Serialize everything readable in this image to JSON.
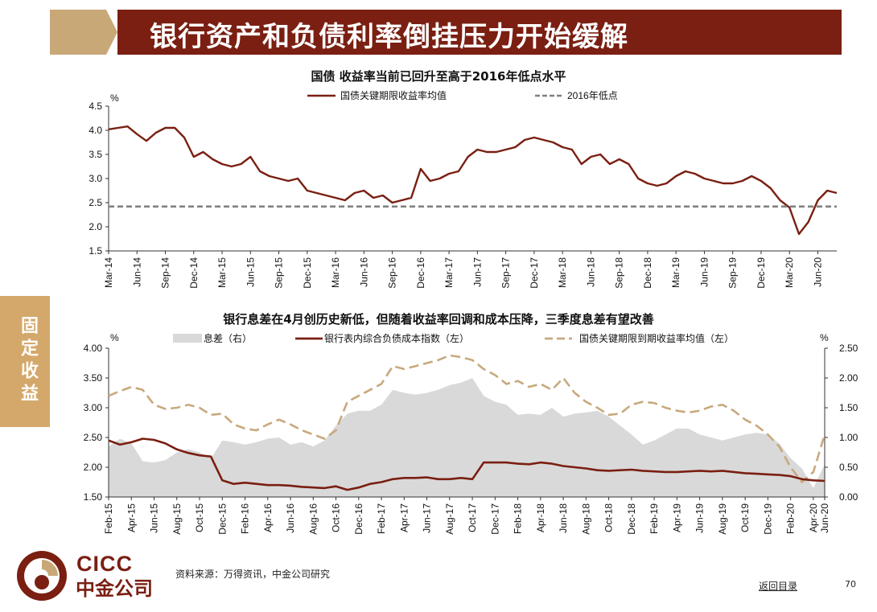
{
  "header": {
    "title": "银行资产和负债利率倒挂压力开始缓解"
  },
  "sidebar": {
    "label": "固定收益"
  },
  "footer": {
    "source": "资料来源：万得资讯，中金公司研究",
    "back_link": "返回目录",
    "page_number": "70"
  },
  "logo": {
    "text_en": "CICC",
    "text_cn": "中金公司"
  },
  "colors": {
    "brand_red": "#7a1f12",
    "brand_tan": "#c9a877",
    "dash_gray": "#808080",
    "spread_fill": "#d9d9d9",
    "yield_tan": "#c8a97e"
  },
  "chart_data": [
    {
      "type": "line",
      "title": "国债 收益率当前已回升至高于2016年低点水平",
      "ylabel": "%",
      "ylim": [
        1.5,
        4.5
      ],
      "yticks": [
        "4.5",
        "4.0",
        "3.5",
        "3.0",
        "2.5",
        "2.0",
        "1.5"
      ],
      "xlim": [
        "2014-03",
        "2020-08"
      ],
      "xticks": [
        "Mar-14",
        "Jun-14",
        "Sep-14",
        "Dec-14",
        "Mar-15",
        "Jun-15",
        "Sep-15",
        "Dec-15",
        "Mar-16",
        "Jun-16",
        "Sep-16",
        "Dec-16",
        "Mar-17",
        "Jun-17",
        "Sep-17",
        "Dec-17",
        "Mar-18",
        "Jun-18",
        "Sep-18",
        "Dec-18",
        "Mar-19",
        "Jun-19",
        "Sep-19",
        "Dec-19",
        "Mar-20",
        "Jun-20"
      ],
      "legend_position": "top",
      "series": [
        {
          "name": "国债关键期限收益率均值",
          "style": "solid",
          "color": "#7a1f12",
          "x": [
            "2014-03",
            "2014-04",
            "2014-05",
            "2014-06",
            "2014-07",
            "2014-08",
            "2014-09",
            "2014-10",
            "2014-11",
            "2014-12",
            "2015-01",
            "2015-02",
            "2015-03",
            "2015-04",
            "2015-05",
            "2015-06",
            "2015-07",
            "2015-08",
            "2015-09",
            "2015-10",
            "2015-11",
            "2015-12",
            "2016-01",
            "2016-02",
            "2016-03",
            "2016-04",
            "2016-05",
            "2016-06",
            "2016-07",
            "2016-08",
            "2016-09",
            "2016-10",
            "2016-11",
            "2016-12",
            "2017-01",
            "2017-02",
            "2017-03",
            "2017-04",
            "2017-05",
            "2017-06",
            "2017-07",
            "2017-08",
            "2017-09",
            "2017-10",
            "2017-11",
            "2017-12",
            "2018-01",
            "2018-02",
            "2018-03",
            "2018-04",
            "2018-05",
            "2018-06",
            "2018-07",
            "2018-08",
            "2018-09",
            "2018-10",
            "2018-11",
            "2018-12",
            "2019-01",
            "2019-02",
            "2019-03",
            "2019-04",
            "2019-05",
            "2019-06",
            "2019-07",
            "2019-08",
            "2019-09",
            "2019-10",
            "2019-11",
            "2019-12",
            "2020-01",
            "2020-02",
            "2020-03",
            "2020-04",
            "2020-05",
            "2020-06",
            "2020-07",
            "2020-08"
          ],
          "values": [
            4.02,
            4.05,
            4.08,
            3.92,
            3.78,
            3.95,
            4.05,
            4.05,
            3.85,
            3.45,
            3.55,
            3.4,
            3.3,
            3.25,
            3.3,
            3.45,
            3.15,
            3.05,
            3.0,
            2.95,
            3.0,
            2.75,
            2.7,
            2.65,
            2.6,
            2.55,
            2.7,
            2.75,
            2.6,
            2.65,
            2.5,
            2.55,
            2.6,
            3.2,
            2.95,
            3.0,
            3.1,
            3.15,
            3.45,
            3.6,
            3.55,
            3.55,
            3.6,
            3.65,
            3.8,
            3.85,
            3.8,
            3.75,
            3.65,
            3.6,
            3.3,
            3.45,
            3.5,
            3.3,
            3.4,
            3.3,
            3.0,
            2.9,
            2.85,
            2.9,
            3.05,
            3.15,
            3.1,
            3.0,
            2.95,
            2.9,
            2.9,
            2.95,
            3.05,
            2.95,
            2.8,
            2.55,
            2.4,
            1.85,
            2.1,
            2.55,
            2.75,
            2.7
          ]
        },
        {
          "name": "2016年低点",
          "style": "dashed",
          "color": "#808080",
          "value": 2.42
        }
      ]
    },
    {
      "type": "line",
      "title": "银行息差在4月创历史新低，但随着收益率回调和成本压降，三季度息差有望改善",
      "ylabel_left": "%",
      "ylabel_right": "%",
      "ylim_left": [
        1.5,
        4.0
      ],
      "ylim_right": [
        0.0,
        2.5
      ],
      "yticks_left": [
        "4.00",
        "3.50",
        "3.00",
        "2.50",
        "2.00",
        "1.50"
      ],
      "yticks_right": [
        "2.50",
        "2.00",
        "1.50",
        "1.00",
        "0.50",
        "0.00"
      ],
      "xlim": [
        "2015-02",
        "2020-06"
      ],
      "xticks": [
        "Feb-15",
        "Apr-15",
        "Jun-15",
        "Aug-15",
        "Oct-15",
        "Dec-15",
        "Feb-16",
        "Apr-16",
        "Jun-16",
        "Aug-16",
        "Oct-16",
        "Dec-16",
        "Feb-17",
        "Apr-17",
        "Jun-17",
        "Aug-17",
        "Oct-17",
        "Dec-17",
        "Feb-18",
        "Apr-18",
        "Jun-18",
        "Aug-18",
        "Oct-18",
        "Dec-18",
        "Feb-19",
        "Apr-19",
        "Jun-19",
        "Aug-19",
        "Oct-19",
        "Dec-19",
        "Feb-20",
        "Apr-20",
        "Jun-20"
      ],
      "legend_position": "top",
      "series": [
        {
          "name": "息差（右）",
          "type": "area",
          "axis": "right",
          "color": "#d9d9d9",
          "values": [
            0.85,
            0.98,
            0.9,
            0.6,
            0.58,
            0.62,
            0.75,
            0.8,
            0.75,
            0.65,
            0.95,
            0.92,
            0.88,
            0.92,
            0.98,
            1.0,
            0.88,
            0.92,
            0.85,
            0.95,
            1.2,
            1.4,
            1.45,
            1.45,
            1.55,
            1.8,
            1.75,
            1.72,
            1.75,
            1.8,
            1.88,
            1.92,
            2.0,
            1.7,
            1.6,
            1.55,
            1.38,
            1.4,
            1.38,
            1.5,
            1.35,
            1.4,
            1.42,
            1.45,
            1.35,
            1.2,
            1.05,
            0.88,
            0.95,
            1.05,
            1.15,
            1.15,
            1.05,
            1.0,
            0.95,
            1.0,
            1.05,
            1.08,
            1.05,
            0.9,
            0.65,
            0.48,
            0.15,
            0.55
          ]
        },
        {
          "name": "银行表内综合负债成本指数（左）",
          "type": "line",
          "axis": "left",
          "color": "#7a1f12",
          "values": [
            2.45,
            2.38,
            2.42,
            2.48,
            2.46,
            2.4,
            2.3,
            2.24,
            2.2,
            2.18,
            1.78,
            1.72,
            1.74,
            1.72,
            1.7,
            1.7,
            1.69,
            1.67,
            1.66,
            1.65,
            1.68,
            1.62,
            1.66,
            1.72,
            1.75,
            1.8,
            1.82,
            1.82,
            1.83,
            1.8,
            1.8,
            1.82,
            1.8,
            2.08,
            2.08,
            2.08,
            2.06,
            2.05,
            2.08,
            2.06,
            2.02,
            2.0,
            1.98,
            1.95,
            1.94,
            1.95,
            1.96,
            1.94,
            1.93,
            1.92,
            1.92,
            1.93,
            1.94,
            1.93,
            1.94,
            1.92,
            1.9,
            1.89,
            1.88,
            1.87,
            1.85,
            1.8,
            1.78,
            1.77
          ]
        },
        {
          "name": "国债关键期限到期收益率均值（左）",
          "type": "line",
          "style": "dashed",
          "axis": "left",
          "color": "#c8a97e",
          "values": [
            3.2,
            3.28,
            3.35,
            3.3,
            3.05,
            2.98,
            3.0,
            3.05,
            3.0,
            2.88,
            2.9,
            2.72,
            2.65,
            2.62,
            2.72,
            2.8,
            2.72,
            2.62,
            2.55,
            2.48,
            2.62,
            3.1,
            3.2,
            3.3,
            3.4,
            3.7,
            3.65,
            3.7,
            3.75,
            3.8,
            3.88,
            3.85,
            3.8,
            3.65,
            3.55,
            3.4,
            3.45,
            3.35,
            3.4,
            3.3,
            3.5,
            3.25,
            3.1,
            3.0,
            2.88,
            2.9,
            3.05,
            3.1,
            3.08,
            3.0,
            2.95,
            2.92,
            2.95,
            3.02,
            3.05,
            2.95,
            2.8,
            2.7,
            2.55,
            2.35,
            2.0,
            1.75,
            1.92,
            2.55
          ]
        }
      ]
    }
  ]
}
